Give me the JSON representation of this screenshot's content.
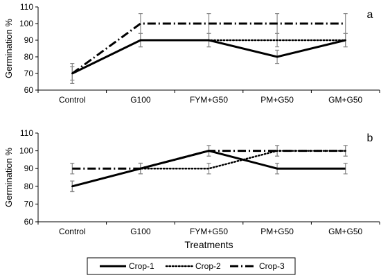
{
  "chart_data": [
    {
      "type": "line",
      "panel_label": "a",
      "categories": [
        "Control",
        "G100",
        "FYM+G50",
        "PM+G50",
        "GM+G50"
      ],
      "ylabel": "Germination %",
      "xlabel": "",
      "ylim": [
        60,
        110
      ],
      "yticks": [
        60,
        70,
        80,
        90,
        100,
        110
      ],
      "series": [
        {
          "name": "Crop-1",
          "values": [
            70,
            90,
            90,
            80,
            90
          ],
          "errors": [
            4,
            4,
            4,
            4,
            4
          ]
        },
        {
          "name": "Crop-2",
          "values": [
            70,
            90,
            90,
            90,
            90
          ],
          "errors": [
            4,
            4,
            4,
            4,
            4
          ]
        },
        {
          "name": "Crop-3",
          "values": [
            70,
            100,
            100,
            100,
            100
          ],
          "errors": [
            6,
            6,
            6,
            6,
            6
          ]
        }
      ]
    },
    {
      "type": "line",
      "panel_label": "b",
      "categories": [
        "Control",
        "G100",
        "FYM+G50",
        "PM+G50",
        "GM+G50"
      ],
      "ylabel": "Germination %",
      "xlabel": "Treatments",
      "ylim": [
        60,
        110
      ],
      "yticks": [
        60,
        70,
        80,
        90,
        100,
        110
      ],
      "series": [
        {
          "name": "Crop-1",
          "values": [
            80,
            90,
            100,
            90,
            90
          ],
          "errors": [
            3,
            3,
            3,
            3,
            3
          ]
        },
        {
          "name": "Crop-2",
          "values": [
            80,
            90,
            90,
            100,
            100
          ],
          "errors": [
            3,
            3,
            3,
            3,
            3
          ]
        },
        {
          "name": "Crop-3",
          "values": [
            90,
            90,
            100,
            100,
            100
          ],
          "errors": [
            3,
            3,
            3,
            3,
            3
          ]
        }
      ]
    }
  ],
  "legend": {
    "placement": "bottom",
    "items": [
      "Crop-1",
      "Crop-2",
      "Crop-3"
    ]
  }
}
